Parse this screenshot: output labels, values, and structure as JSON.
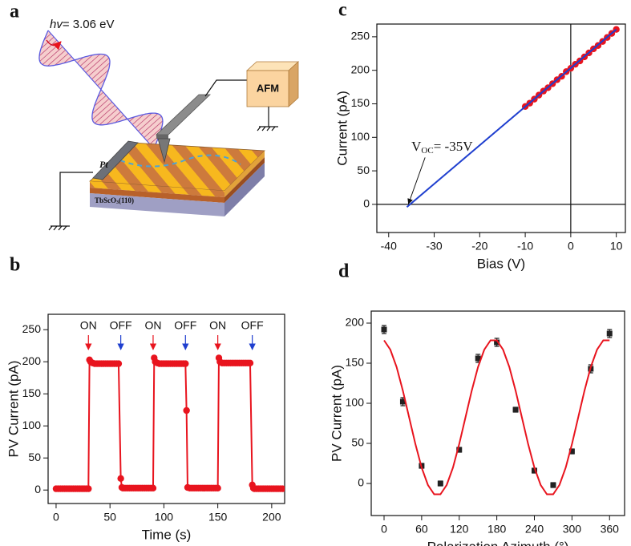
{
  "panels": [
    "a",
    "b",
    "c",
    "d"
  ],
  "schematic": {
    "photon_energy": [
      "hv",
      "= 3.06 eV"
    ],
    "afm": "AFM",
    "electrode": "Pt",
    "substrate": [
      "TbScO",
      "3",
      "(110)"
    ]
  },
  "chart_data": [
    {
      "type": "line",
      "xlabel": "Time (s)",
      "ylabel": "PV Current (pA)",
      "xlim": [
        -7.4,
        212
      ],
      "ylim": [
        -21,
        274
      ],
      "xticks": [
        0,
        50,
        100,
        150,
        200
      ],
      "yticks": [
        0,
        50,
        100,
        150,
        200,
        250
      ],
      "series": [
        {
          "color": "#e8141e",
          "marker": true,
          "line": true,
          "x": [
            0,
            2,
            4,
            6,
            8,
            10,
            12,
            14,
            16,
            18,
            20,
            22,
            24,
            26,
            28,
            30,
            31,
            32,
            34,
            36,
            38,
            40,
            42,
            44,
            46,
            48,
            50,
            52,
            54,
            56,
            58,
            60,
            61,
            62,
            64,
            66,
            68,
            70,
            72,
            74,
            76,
            78,
            80,
            82,
            84,
            86,
            88,
            90,
            91,
            92,
            94,
            96,
            98,
            100,
            102,
            104,
            106,
            108,
            110,
            112,
            114,
            116,
            118,
            120,
            121,
            122,
            124,
            126,
            128,
            130,
            132,
            134,
            136,
            138,
            140,
            142,
            144,
            146,
            148,
            150,
            151,
            152,
            154,
            156,
            158,
            160,
            162,
            164,
            166,
            168,
            170,
            172,
            174,
            176,
            178,
            180,
            182,
            183,
            184,
            186,
            188,
            190,
            192,
            194,
            196,
            198,
            200,
            202,
            204,
            206,
            208,
            210
          ],
          "values": [
            2,
            2,
            2,
            2,
            2,
            2,
            2,
            2,
            2,
            2,
            2,
            2,
            2,
            2,
            2,
            2,
            203,
            200,
            198,
            197,
            197,
            197,
            197,
            197,
            197,
            197,
            197,
            197,
            197,
            197,
            197,
            18,
            4,
            3,
            3,
            3,
            3,
            3,
            3,
            3,
            3,
            3,
            3,
            3,
            3,
            3,
            3,
            3,
            206,
            200,
            198,
            197,
            197,
            197,
            197,
            197,
            197,
            197,
            197,
            197,
            197,
            197,
            197,
            197,
            124,
            4,
            3,
            3,
            3,
            3,
            3,
            3,
            3,
            3,
            3,
            3,
            3,
            3,
            3,
            3,
            206,
            200,
            198,
            198,
            198,
            198,
            198,
            198,
            198,
            198,
            198,
            198,
            198,
            198,
            198,
            198,
            8,
            3,
            2,
            2,
            2,
            2,
            2,
            2,
            2,
            2,
            2,
            2,
            2,
            2,
            2,
            2
          ]
        }
      ],
      "annotations": [
        {
          "text": "ON",
          "x": 30,
          "color": "#e8141e"
        },
        {
          "text": "OFF",
          "x": 60,
          "color": "#1f3fcf"
        },
        {
          "text": "ON",
          "x": 90,
          "color": "#e8141e"
        },
        {
          "text": "OFF",
          "x": 120,
          "color": "#1f3fcf"
        },
        {
          "text": "ON",
          "x": 150,
          "color": "#e8141e"
        },
        {
          "text": "OFF",
          "x": 182,
          "color": "#1f3fcf"
        }
      ]
    },
    {
      "type": "scatter",
      "xlabel": "Bias (V)",
      "ylabel": "Current (pA)",
      "xlim": [
        -42.6,
        12
      ],
      "ylim": [
        -42,
        269
      ],
      "xticks": [
        -40,
        -30,
        -20,
        -10,
        0,
        10
      ],
      "yticks": [
        0,
        50,
        100,
        150,
        200,
        250
      ],
      "zero_lines": true,
      "series": [
        {
          "color": "#e8141e",
          "marker": true,
          "line": false,
          "x": [
            -10,
            -9,
            -8,
            -7,
            -6,
            -5,
            -4,
            -3,
            -2,
            -1,
            0,
            1,
            2,
            3,
            4,
            5,
            6,
            7,
            8,
            9,
            10
          ],
          "values": [
            146,
            151,
            157,
            163,
            169,
            174,
            180,
            186,
            191,
            198,
            203,
            209,
            214,
            220,
            226,
            232,
            237,
            243,
            249,
            255,
            261
          ]
        },
        {
          "color": "#1f3fcf",
          "marker": false,
          "line": true,
          "x": [
            -36,
            10
          ],
          "values": [
            -4,
            261
          ]
        }
      ],
      "annotation": [
        "V",
        "OC",
        "= -35V"
      ]
    },
    {
      "type": "scatter",
      "xlabel": "Polarization Azimuth (°)",
      "ylabel": "PV Current (pA)",
      "xlim": [
        -20.5,
        384
      ],
      "ylim": [
        -40,
        215
      ],
      "xticks": [
        0,
        60,
        120,
        180,
        240,
        300,
        360
      ],
      "yticks": [
        0,
        50,
        100,
        150,
        200
      ],
      "series": [
        {
          "color": "#222222",
          "marker": "square",
          "line": false,
          "x": [
            0,
            30,
            60,
            90,
            120,
            150,
            180,
            210,
            240,
            270,
            300,
            330,
            360
          ],
          "values": [
            192,
            102,
            22,
            0,
            42,
            156,
            176,
            92,
            16,
            -2,
            40,
            143,
            187
          ],
          "errors": [
            5,
            5,
            3,
            3,
            3,
            5,
            5,
            3,
            3,
            3,
            3,
            5,
            5
          ]
        },
        {
          "color": "#e8141e",
          "marker": false,
          "line": true,
          "x": [
            0,
            10,
            20,
            30,
            40,
            50,
            60,
            70,
            80,
            90,
            100,
            110,
            120,
            130,
            140,
            150,
            160,
            170,
            180,
            190,
            200,
            210,
            220,
            230,
            240,
            250,
            260,
            270,
            280,
            290,
            300,
            310,
            320,
            330,
            340,
            350,
            360
          ],
          "values": [
            178.5,
            166.9,
            145.2,
            115.8,
            82.5,
            49.2,
            19.8,
            -1.9,
            -13.5,
            -13.5,
            -1.9,
            19.8,
            49.2,
            82.5,
            115.8,
            145.2,
            166.9,
            178.5,
            178.5,
            166.9,
            145.2,
            115.8,
            82.5,
            49.2,
            19.8,
            -1.9,
            -13.5,
            -13.5,
            -1.9,
            19.8,
            49.2,
            82.5,
            115.8,
            145.2,
            166.9,
            178.5,
            178.5
          ]
        }
      ]
    }
  ]
}
